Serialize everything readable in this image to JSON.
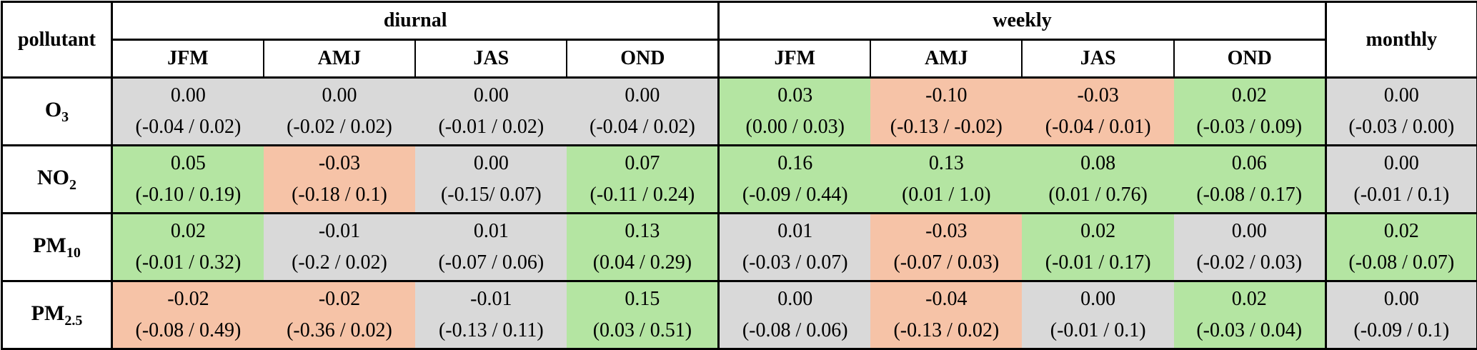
{
  "header": {
    "corner": "pollutant",
    "groups": [
      {
        "label": "diurnal",
        "seasons": [
          "JFM",
          "AMJ",
          "JAS",
          "OND"
        ]
      },
      {
        "label": "weekly",
        "seasons": [
          "JFM",
          "AMJ",
          "JAS",
          "OND"
        ]
      },
      {
        "label": "monthly"
      }
    ]
  },
  "rows": [
    {
      "pollutant": {
        "base": "O",
        "sub": "3"
      },
      "cells": [
        {
          "value": "0.00",
          "range": "(-0.04 / 0.02)",
          "color": "#d9d9d9"
        },
        {
          "value": "0.00",
          "range": "(-0.02 / 0.02)",
          "color": "#d9d9d9"
        },
        {
          "value": "0.00",
          "range": "(-0.01 / 0.02)",
          "color": "#d9d9d9"
        },
        {
          "value": "0.00",
          "range": "(-0.04 / 0.02)",
          "color": "#d9d9d9"
        },
        {
          "value": "0.03",
          "range": "(0.00 / 0.03)",
          "color": "#b4e5a2"
        },
        {
          "value": "-0.10",
          "range": "(-0.13 / -0.02)",
          "color": "#f6c3a7"
        },
        {
          "value": "-0.03",
          "range": "(-0.04 / 0.01)",
          "color": "#f6c3a7"
        },
        {
          "value": "0.02",
          "range": "(-0.03 / 0.09)",
          "color": "#b4e5a2"
        },
        {
          "value": "0.00",
          "range": "(-0.03 / 0.00)",
          "color": "#d9d9d9"
        }
      ]
    },
    {
      "pollutant": {
        "base": "NO",
        "sub": "2"
      },
      "cells": [
        {
          "value": "0.05",
          "range": "(-0.10 / 0.19)",
          "color": "#b4e5a2"
        },
        {
          "value": "-0.03",
          "range": "(-0.18 / 0.1)",
          "color": "#f6c3a7"
        },
        {
          "value": "0.00",
          "range": "(-0.15/ 0.07)",
          "color": "#d9d9d9"
        },
        {
          "value": "0.07",
          "range": "(-0.11 / 0.24)",
          "color": "#b4e5a2"
        },
        {
          "value": "0.16",
          "range": "(-0.09 / 0.44)",
          "color": "#b4e5a2"
        },
        {
          "value": "0.13",
          "range": "(0.01 / 1.0)",
          "color": "#b4e5a2"
        },
        {
          "value": "0.08",
          "range": "(0.01 / 0.76)",
          "color": "#b4e5a2"
        },
        {
          "value": "0.06",
          "range": "(-0.08 / 0.17)",
          "color": "#b4e5a2"
        },
        {
          "value": "0.00",
          "range": "(-0.01 / 0.1)",
          "color": "#d9d9d9"
        }
      ]
    },
    {
      "pollutant": {
        "base": "PM",
        "sub": "10"
      },
      "cells": [
        {
          "value": "0.02",
          "range": "(-0.01 / 0.32)",
          "color": "#b4e5a2"
        },
        {
          "value": "-0.01",
          "range": "(-0.2 / 0.02)",
          "color": "#d9d9d9"
        },
        {
          "value": "0.01",
          "range": "(-0.07 / 0.06)",
          "color": "#d9d9d9"
        },
        {
          "value": "0.13",
          "range": "(0.04 / 0.29)",
          "color": "#b4e5a2"
        },
        {
          "value": "0.01",
          "range": "(-0.03 / 0.07)",
          "color": "#d9d9d9"
        },
        {
          "value": "-0.03",
          "range": "(-0.07 / 0.03)",
          "color": "#f6c3a7"
        },
        {
          "value": "0.02",
          "range": "(-0.01 / 0.17)",
          "color": "#b4e5a2"
        },
        {
          "value": "0.00",
          "range": "(-0.02 / 0.03)",
          "color": "#d9d9d9"
        },
        {
          "value": "0.02",
          "range": "(-0.08 / 0.07)",
          "color": "#b4e5a2"
        }
      ]
    },
    {
      "pollutant": {
        "base": "PM",
        "sub": "2.5"
      },
      "cells": [
        {
          "value": "-0.02",
          "range": "(-0.08 / 0.49)",
          "color": "#f6c3a7"
        },
        {
          "value": "-0.02",
          "range": "(-0.36 / 0.02)",
          "color": "#f6c3a7"
        },
        {
          "value": "-0.01",
          "range": "(-0.13 / 0.11)",
          "color": "#d9d9d9"
        },
        {
          "value": "0.15",
          "range": "(0.03 / 0.51)",
          "color": "#b4e5a2"
        },
        {
          "value": "0.00",
          "range": "(-0.08 / 0.06)",
          "color": "#d9d9d9"
        },
        {
          "value": "-0.04",
          "range": "(-0.13 / 0.02)",
          "color": "#f6c3a7"
        },
        {
          "value": "0.00",
          "range": "(-0.01 / 0.1)",
          "color": "#d9d9d9"
        },
        {
          "value": "0.02",
          "range": "(-0.03 / 0.04)",
          "color": "#b4e5a2"
        },
        {
          "value": "0.00",
          "range": "(-0.09 / 0.1)",
          "color": "#d9d9d9"
        }
      ]
    }
  ]
}
